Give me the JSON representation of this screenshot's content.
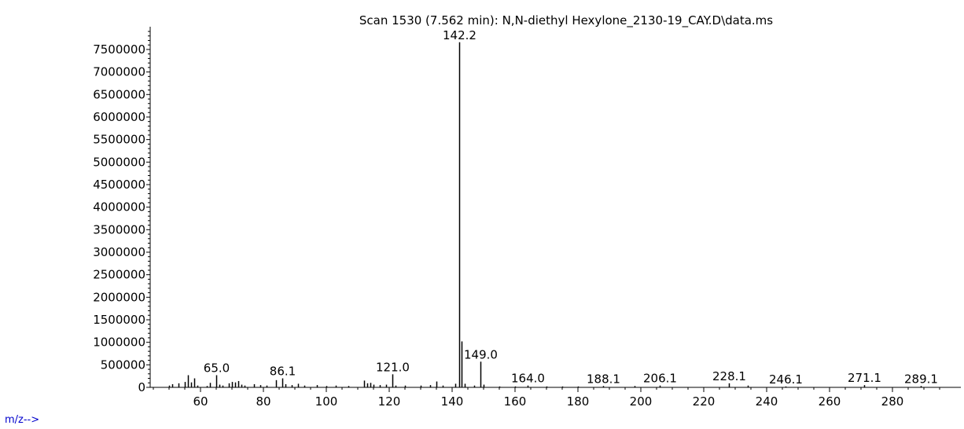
{
  "chart_data": {
    "type": "bar",
    "title": "Scan 1530 (7.562 min): N,N-diethyl Hexylone_2130-19_CAY.D\\data.ms",
    "xlabel": "m/z-->",
    "ylabel": "",
    "xlim": [
      42,
      296
    ],
    "ylim": [
      0,
      7900000
    ],
    "x_ticks": [
      60,
      80,
      100,
      120,
      140,
      160,
      180,
      200,
      220,
      240,
      260,
      280
    ],
    "y_ticks": [
      0,
      500000,
      1000000,
      1500000,
      2000000,
      2500000,
      3000000,
      3500000,
      4000000,
      4500000,
      5000000,
      5500000,
      6000000,
      6500000,
      7000000,
      7500000
    ],
    "peaks": [
      {
        "mz": 50.0,
        "abundance": 40000
      },
      {
        "mz": 51.0,
        "abundance": 70000
      },
      {
        "mz": 53.0,
        "abundance": 90000
      },
      {
        "mz": 55.0,
        "abundance": 120000
      },
      {
        "mz": 56.0,
        "abundance": 270000
      },
      {
        "mz": 57.0,
        "abundance": 110000
      },
      {
        "mz": 58.0,
        "abundance": 200000
      },
      {
        "mz": 59.0,
        "abundance": 40000
      },
      {
        "mz": 62.0,
        "abundance": 30000
      },
      {
        "mz": 63.0,
        "abundance": 100000
      },
      {
        "mz": 65.0,
        "abundance": 270000,
        "label": "65.0"
      },
      {
        "mz": 66.0,
        "abundance": 60000
      },
      {
        "mz": 67.0,
        "abundance": 40000
      },
      {
        "mz": 69.0,
        "abundance": 90000
      },
      {
        "mz": 70.0,
        "abundance": 120000
      },
      {
        "mz": 71.0,
        "abundance": 110000
      },
      {
        "mz": 72.0,
        "abundance": 140000
      },
      {
        "mz": 73.0,
        "abundance": 60000
      },
      {
        "mz": 74.0,
        "abundance": 40000
      },
      {
        "mz": 77.0,
        "abundance": 70000
      },
      {
        "mz": 79.0,
        "abundance": 50000
      },
      {
        "mz": 81.0,
        "abundance": 40000
      },
      {
        "mz": 84.0,
        "abundance": 160000
      },
      {
        "mz": 86.1,
        "abundance": 200000,
        "label": "86.1"
      },
      {
        "mz": 87.0,
        "abundance": 70000
      },
      {
        "mz": 89.0,
        "abundance": 50000
      },
      {
        "mz": 91.0,
        "abundance": 80000
      },
      {
        "mz": 93.0,
        "abundance": 40000
      },
      {
        "mz": 97.0,
        "abundance": 50000
      },
      {
        "mz": 100.0,
        "abundance": 30000
      },
      {
        "mz": 103.0,
        "abundance": 40000
      },
      {
        "mz": 107.0,
        "abundance": 30000
      },
      {
        "mz": 112.0,
        "abundance": 150000
      },
      {
        "mz": 113.0,
        "abundance": 90000
      },
      {
        "mz": 114.0,
        "abundance": 100000
      },
      {
        "mz": 115.0,
        "abundance": 60000
      },
      {
        "mz": 117.0,
        "abundance": 50000
      },
      {
        "mz": 119.0,
        "abundance": 60000
      },
      {
        "mz": 121.0,
        "abundance": 290000,
        "label": "121.0"
      },
      {
        "mz": 122.0,
        "abundance": 40000
      },
      {
        "mz": 125.0,
        "abundance": 40000
      },
      {
        "mz": 130.0,
        "abundance": 40000
      },
      {
        "mz": 133.0,
        "abundance": 50000
      },
      {
        "mz": 135.0,
        "abundance": 130000
      },
      {
        "mz": 137.0,
        "abundance": 40000
      },
      {
        "mz": 141.0,
        "abundance": 80000
      },
      {
        "mz": 142.2,
        "abundance": 7660000,
        "label": "142.2"
      },
      {
        "mz": 143.0,
        "abundance": 1020000
      },
      {
        "mz": 144.0,
        "abundance": 80000
      },
      {
        "mz": 147.0,
        "abundance": 40000
      },
      {
        "mz": 149.0,
        "abundance": 570000,
        "label": "149.0"
      },
      {
        "mz": 150.0,
        "abundance": 60000
      },
      {
        "mz": 155.0,
        "abundance": 20000
      },
      {
        "mz": 160.0,
        "abundance": 20000
      },
      {
        "mz": 164.0,
        "abundance": 40000,
        "label": "164.0"
      },
      {
        "mz": 170.0,
        "abundance": 20000
      },
      {
        "mz": 175.0,
        "abundance": 20000
      },
      {
        "mz": 180.0,
        "abundance": 20000
      },
      {
        "mz": 188.1,
        "abundance": 30000,
        "label": "188.1"
      },
      {
        "mz": 198.0,
        "abundance": 30000
      },
      {
        "mz": 206.1,
        "abundance": 40000,
        "label": "206.1"
      },
      {
        "mz": 228.1,
        "abundance": 90000,
        "label": "228.1"
      },
      {
        "mz": 234.0,
        "abundance": 40000
      },
      {
        "mz": 246.1,
        "abundance": 20000,
        "label": "246.1"
      },
      {
        "mz": 271.1,
        "abundance": 50000,
        "label": "271.1"
      },
      {
        "mz": 289.1,
        "abundance": 30000,
        "label": "289.1"
      }
    ]
  }
}
